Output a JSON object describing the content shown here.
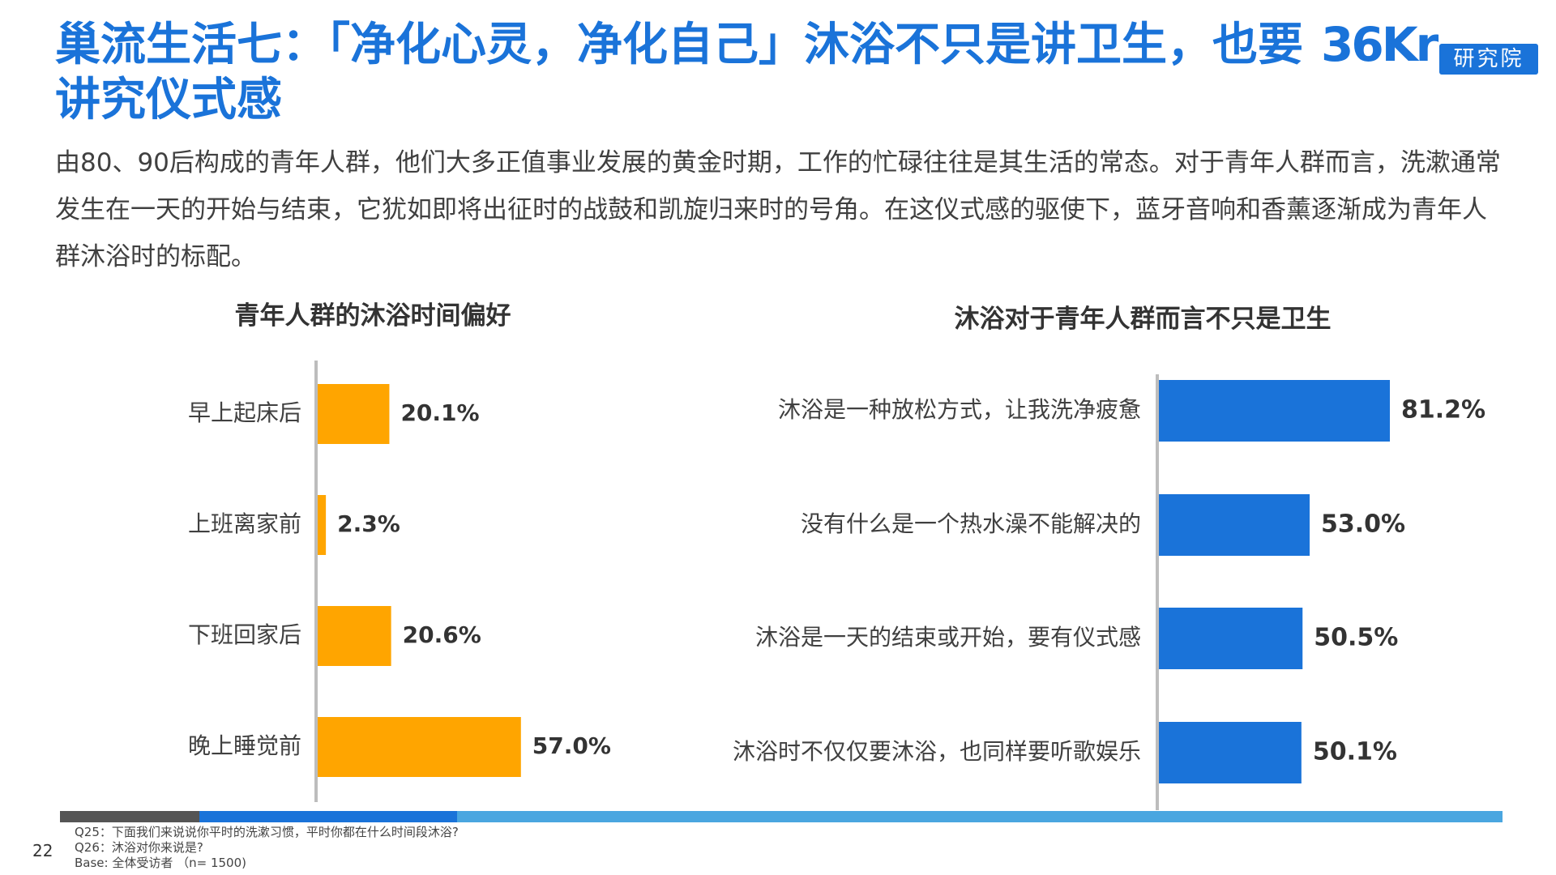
{
  "header": {
    "title": "巢流生活七：「净化心灵，净化自己」沐浴不只是讲卫生，也要讲究仪式感",
    "logo_brand": "36Kr",
    "logo_badge": "研究院"
  },
  "intro": "由80、90后构成的青年人群，他们大多正值事业发展的黄金时期，工作的忙碌往往是其生活的常态。对于青年人群而言，洗漱通常发生在一天的开始与结束，它犹如即将出征时的战鼓和凯旋归来时的号角。在这仪式感的驱使下，蓝牙音响和香薰逐渐成为青年人群沐浴时的标配。",
  "chart_data": [
    {
      "type": "bar",
      "orientation": "horizontal",
      "title": "青年人群的沐浴时间偏好",
      "categories": [
        "早上起床后",
        "上班离家前",
        "下班回家后",
        "晚上睡觉前"
      ],
      "values": [
        20.1,
        2.3,
        20.6,
        57.0
      ],
      "labels": [
        "20.1%",
        "2.3%",
        "20.6%",
        "57.0%"
      ],
      "unit": "%",
      "color": "#ffa500",
      "xlim": [
        0,
        100
      ],
      "grid": false,
      "legend": "none"
    },
    {
      "type": "bar",
      "orientation": "horizontal",
      "title": "沐浴对于青年人群而言不只是卫生",
      "categories": [
        "沐浴是一种放松方式，让我洗净疲惫",
        "没有什么是一个热水澡不能解决的",
        "沐浴是一天的结束或开始，要有仪式感",
        "沐浴时不仅仅要沐浴，也同样要听歌娱乐"
      ],
      "values": [
        81.2,
        53.0,
        50.5,
        50.1
      ],
      "labels": [
        "81.2%",
        "53.0%",
        "50.5%",
        "50.1%"
      ],
      "unit": "%",
      "color": "#1a73d9",
      "xlim": [
        0,
        100
      ],
      "grid": false,
      "legend": "none"
    }
  ],
  "footer": {
    "page_number": "22",
    "notes": [
      "Q25：下面我们来说说你平时的洗漱习惯，平时你都在什么时间段沐浴?",
      "Q26：沐浴对你来说是?",
      "Base: 全体受访者 （n= 1500)"
    ],
    "bar_colors": [
      "#555555",
      "#1a73d9",
      "#4aa6e0"
    ]
  }
}
